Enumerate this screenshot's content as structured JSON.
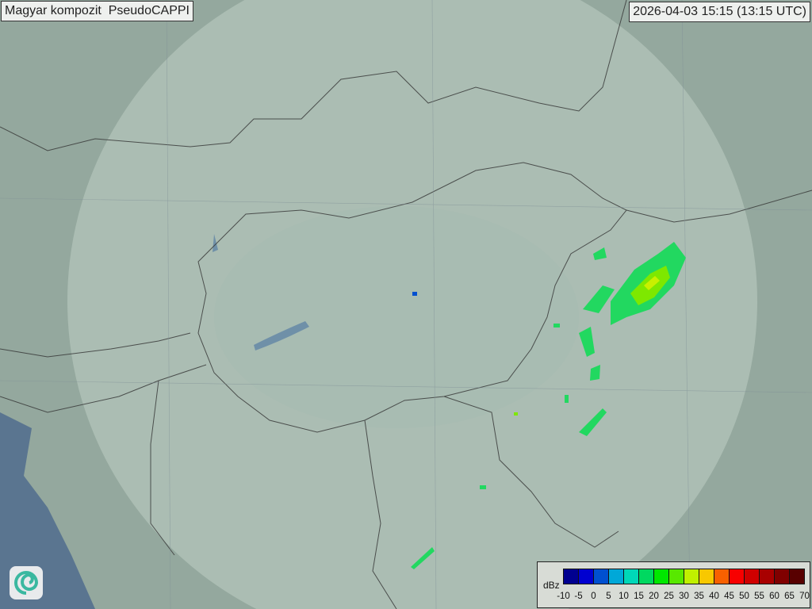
{
  "title": "Magyar kompozit  PseudoCAPPI",
  "timestamp": "2026-04-03 15:15 (13:15 UTC)",
  "legend": {
    "unit": "dBz",
    "colors": [
      "#000090",
      "#0000d0",
      "#0050d0",
      "#00a8d8",
      "#00d8b8",
      "#00d860",
      "#00e800",
      "#58e800",
      "#c0f000",
      "#f8c800",
      "#f86000",
      "#f80000",
      "#d00000",
      "#a80000",
      "#800000",
      "#580000"
    ],
    "ticks": [
      "-10",
      "-5",
      "0",
      "5",
      "10",
      "15",
      "20",
      "25",
      "30",
      "35",
      "40",
      "45",
      "50",
      "55",
      "60",
      "65",
      "70"
    ]
  },
  "icons": {
    "logo": "swirl-logo-icon"
  }
}
